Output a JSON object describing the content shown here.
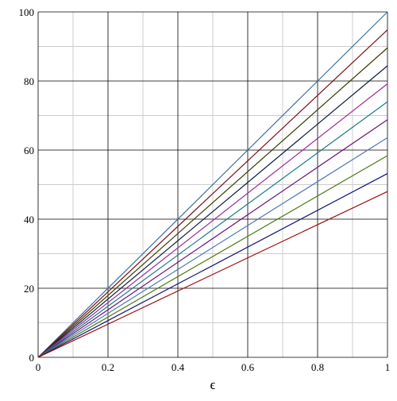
{
  "chart_data": {
    "type": "line",
    "x_label": "ϵ",
    "x": [
      0,
      1
    ],
    "series": [
      {
        "color": "#3c6e9c",
        "values": [
          0,
          100
        ]
      },
      {
        "color": "#7a1010",
        "values": [
          0,
          94.8
        ]
      },
      {
        "color": "#3a3a00",
        "values": [
          0,
          89.6
        ]
      },
      {
        "color": "#0a1a40",
        "values": [
          0,
          84.4
        ]
      },
      {
        "color": "#9a2a9a",
        "values": [
          0,
          79.2
        ]
      },
      {
        "color": "#1a7a8a",
        "values": [
          0,
          74
        ]
      },
      {
        "color": "#6a107a",
        "values": [
          0,
          68.8
        ]
      },
      {
        "color": "#4a7ab0",
        "values": [
          0,
          63.6
        ]
      },
      {
        "color": "#4a7a10",
        "values": [
          0,
          58.4
        ]
      },
      {
        "color": "#10107a",
        "values": [
          0,
          53.2
        ]
      },
      {
        "color": "#9a1010",
        "values": [
          0,
          48
        ]
      }
    ],
    "xlim": [
      0,
      1
    ],
    "xticks": [
      0,
      0.2,
      0.4,
      0.6,
      0.8,
      1
    ],
    "x_minor_ticks": [
      0.1,
      0.3,
      0.5,
      0.7,
      0.9
    ],
    "ylim": [
      0,
      100
    ],
    "yticks": [
      0,
      20,
      40,
      60,
      80,
      100
    ],
    "y_minor_ticks": [
      10,
      30,
      50,
      70,
      90
    ],
    "grid": true
  }
}
